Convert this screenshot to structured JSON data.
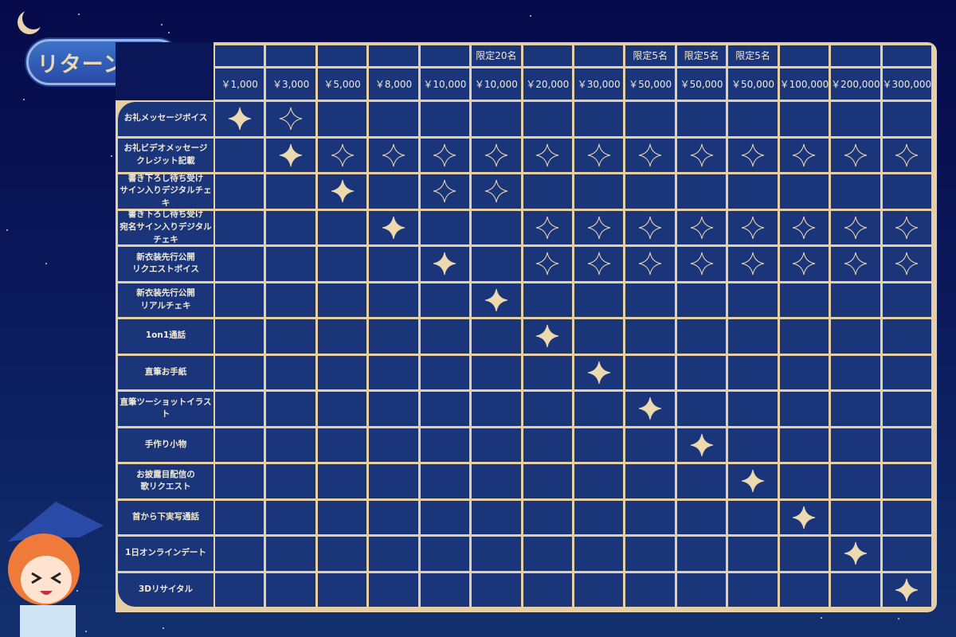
{
  "title": "リターン一覧",
  "colors": {
    "accent": "#e6cfa4",
    "cell": "#1a3579",
    "background": "#060a4a"
  },
  "limits": [
    "",
    "",
    "",
    "",
    "",
    "限定20名",
    "",
    "",
    "限定5名",
    "限定5名",
    "限定5名",
    "",
    "",
    ""
  ],
  "prices": [
    "￥1,000",
    "￥3,000",
    "￥5,000",
    "￥8,000",
    "￥10,000",
    "￥10,000",
    "￥20,000",
    "￥30,000",
    "￥50,000",
    "￥50,000",
    "￥50,000",
    "￥100,000",
    "￥200,000",
    "￥300,000"
  ],
  "legend_marks": {
    "F": "filled-star (main reward)",
    "O": "outline-star (included)"
  },
  "rows": [
    {
      "label": "お礼メッセージボイス",
      "marks": "FO            "
    },
    {
      "label": "お礼ビデオメッセージ\nクレジット記載",
      "marks": " FOOOOOOOOOOOO"
    },
    {
      "label": "書き下ろし待ち受け\nサイン入りデジタルチェキ",
      "marks": "  F OO        "
    },
    {
      "label": "書き下ろし待ち受け\n宛名サイン入りデジタルチェキ",
      "marks": "   F  OOOOOOOO"
    },
    {
      "label": "新衣装先行公開\nリクエストボイス",
      "marks": "    F OOOOOOOO"
    },
    {
      "label": "新衣装先行公開\nリアルチェキ",
      "marks": "     F        "
    },
    {
      "label": "1on1通話",
      "marks": "      F       "
    },
    {
      "label": "直筆お手紙",
      "marks": "       F      "
    },
    {
      "label": "直筆ツーショットイラスト",
      "marks": "        F     "
    },
    {
      "label": "手作り小物",
      "marks": "         F    "
    },
    {
      "label": "お披露目配信の\n歌リクエスト",
      "marks": "          F   "
    },
    {
      "label": "首から下実写通話",
      "marks": "           F  "
    },
    {
      "label": "1日オンラインデート",
      "marks": "            F "
    },
    {
      "label": "3Dリサイタル",
      "marks": "             F"
    }
  ]
}
